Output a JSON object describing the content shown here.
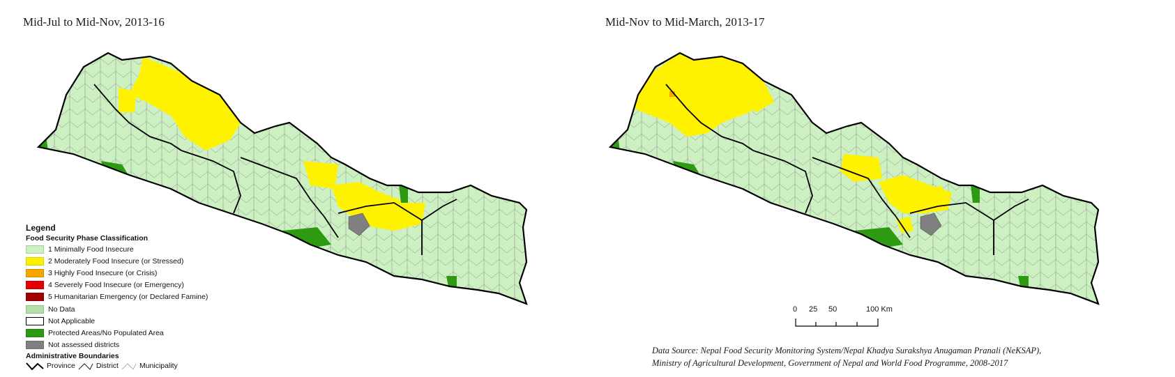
{
  "left_panel": {
    "title": "Mid-Jul to Mid-Nov, 2013-16"
  },
  "right_panel": {
    "title": "Mid-Nov to Mid-March, 2013-17"
  },
  "legend": {
    "title": "Legend",
    "section_title": "Food Security Phase Classification",
    "items": [
      {
        "label": "1 Minimally Food Insecure",
        "color": "#cdf0c2"
      },
      {
        "label": "2 Moderately Food Insecure (or Stressed)",
        "color": "#fff200"
      },
      {
        "label": "3 Highly Food Insecure (or Crisis)",
        "color": "#f7a600"
      },
      {
        "label": "4 Severely Food Insecure (or Emergency)",
        "color": "#e50000"
      },
      {
        "label": "5 Humanitarian Emergency (or Declared Famine)",
        "color": "#a00000"
      },
      {
        "label": "No Data",
        "color": "#b5dfa8"
      },
      {
        "label": "Not Applicable",
        "color": "#ffffff"
      },
      {
        "label": "Protected Areas/No Populated Area",
        "color": "#2e9a13"
      },
      {
        "label": "Not assessed districts",
        "color": "#808080"
      }
    ],
    "boundaries_title": "Administrative Boundaries",
    "boundaries": {
      "province": "Province",
      "district": "District",
      "municipality": "Municipality"
    }
  },
  "scale_bar": {
    "labels": [
      "0",
      "25",
      "50",
      "100 Km"
    ]
  },
  "source": {
    "line1": "Data Source: Nepal Food Security Monitoring System/Nepal Khadya Surakshya Anugaman Pranali (NeKSAP),",
    "line2": "Ministry of Agricultural Development, Government of Nepal and World Food Programme, 2008-2017"
  },
  "colors": {
    "phase1": "#cdf0c2",
    "phase2": "#fff200",
    "phase3": "#f7a600",
    "protected": "#2e9a13",
    "not_assessed": "#808080"
  }
}
